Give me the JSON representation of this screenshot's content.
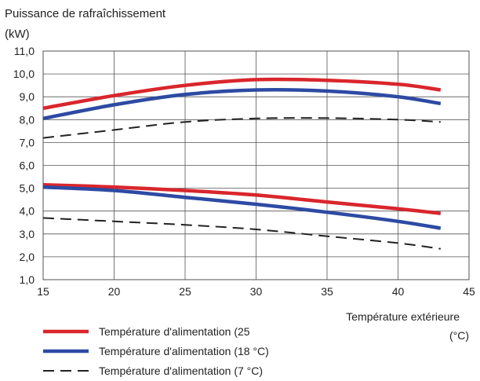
{
  "chart_data": {
    "type": "line",
    "title": "Puissance de rafraîchissement",
    "ylabel": "(kW)",
    "xlabel": "Température extérieure",
    "xunit": "(°C)",
    "xlim": [
      15,
      45
    ],
    "ylim": [
      1.0,
      11.0
    ],
    "xticks": [
      15,
      20,
      25,
      30,
      35,
      40,
      45
    ],
    "xtick_labels": [
      "15",
      "20",
      "25",
      "30",
      "35",
      "40",
      "45"
    ],
    "yticks": [
      1,
      2,
      3,
      4,
      5,
      6,
      7,
      8,
      9,
      10,
      11
    ],
    "ytick_labels": [
      "1,0",
      "2,0",
      "3,0",
      "4,0",
      "5,0",
      "6,0",
      "7,0",
      "8,0",
      "9,0",
      "10,0",
      "11,0"
    ],
    "grid": true,
    "legend_position": "bottom-left",
    "series": [
      {
        "name": "Température d'alimentation (25",
        "group": "upper",
        "color": "#d9262c",
        "style": "solid",
        "x": [
          15,
          20,
          25,
          30,
          35,
          40,
          43
        ],
        "y": [
          8.5,
          9.05,
          9.5,
          9.75,
          9.72,
          9.55,
          9.3
        ]
      },
      {
        "name": "Température d'alimentation (18 °C)",
        "group": "upper",
        "color": "#2d4aa3",
        "style": "solid",
        "x": [
          15,
          20,
          25,
          30,
          35,
          40,
          43
        ],
        "y": [
          8.05,
          8.65,
          9.1,
          9.3,
          9.25,
          9.0,
          8.7
        ]
      },
      {
        "name": "Température d'alimentation (7 °C)",
        "group": "upper",
        "color": "#222222",
        "style": "dashed",
        "x": [
          15,
          20,
          25,
          30,
          35,
          40,
          43
        ],
        "y": [
          7.2,
          7.55,
          7.9,
          8.05,
          8.07,
          8.0,
          7.9
        ]
      },
      {
        "name": "Température d'alimentation (25",
        "group": "lower",
        "color": "#d9262c",
        "style": "solid",
        "x": [
          15,
          20,
          25,
          30,
          35,
          40,
          43
        ],
        "y": [
          5.15,
          5.05,
          4.9,
          4.7,
          4.4,
          4.1,
          3.9
        ]
      },
      {
        "name": "Température d'alimentation (18 °C)",
        "group": "lower",
        "color": "#2d4aa3",
        "style": "solid",
        "x": [
          15,
          20,
          25,
          30,
          35,
          40,
          43
        ],
        "y": [
          5.05,
          4.9,
          4.6,
          4.3,
          3.95,
          3.55,
          3.25
        ]
      },
      {
        "name": "Température d'alimentation (7 °C)",
        "group": "lower",
        "color": "#222222",
        "style": "dashed",
        "x": [
          15,
          20,
          25,
          30,
          35,
          40,
          43
        ],
        "y": [
          3.7,
          3.55,
          3.4,
          3.2,
          2.9,
          2.6,
          2.35
        ]
      }
    ],
    "legend": [
      {
        "label": "Température d'alimentation (25",
        "color": "#d9262c",
        "style": "solid"
      },
      {
        "label": "Température d'alimentation (18 °C)",
        "color": "#2d4aa3",
        "style": "solid"
      },
      {
        "label": "Température d'alimentation (7 °C)",
        "color": "#222222",
        "style": "dashed"
      }
    ]
  }
}
